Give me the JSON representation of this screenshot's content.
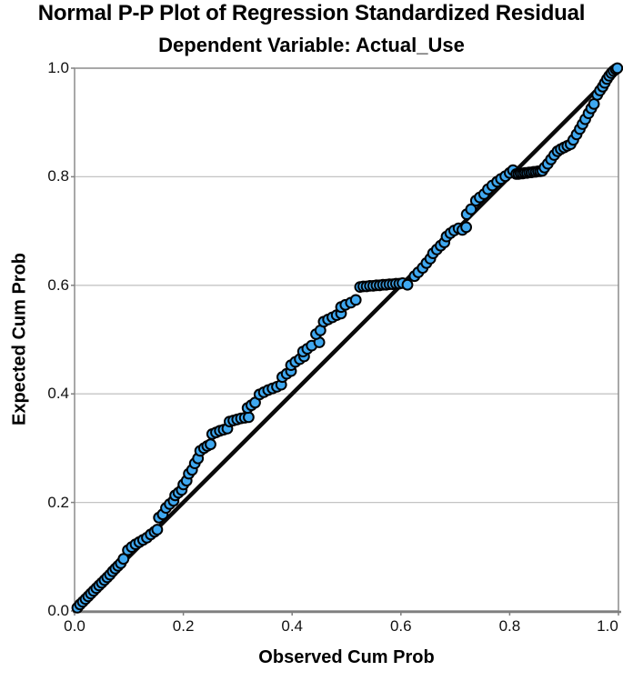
{
  "header": {
    "title": "Normal P-P Plot of Regression Standardized Residual",
    "subtitle": "Dependent Variable: Actual_Use"
  },
  "chart_data": {
    "type": "scatter",
    "title": "Normal P-P Plot of Regression Standardized Residual",
    "subtitle": "Dependent Variable: Actual_Use",
    "xlabel": "Observed Cum Prob",
    "ylabel": "Expected Cum Prob",
    "xlim": [
      0.0,
      1.0
    ],
    "ylim": [
      0.0,
      1.0
    ],
    "xticks": [
      0.0,
      0.2,
      0.4,
      0.6,
      0.8,
      1.0
    ],
    "yticks": [
      0.0,
      0.2,
      0.4,
      0.6,
      0.8,
      1.0
    ],
    "xtick_labels": [
      "0.0",
      "0.2",
      "0.4",
      "0.6",
      "0.8",
      "1.0"
    ],
    "ytick_labels": [
      "0.0",
      "0.2",
      "0.4",
      "0.6",
      "0.8",
      "1.0"
    ],
    "grid": "horizontal-only",
    "legend": "none",
    "reference_line": {
      "from": [
        0.0,
        0.0
      ],
      "to": [
        1.0,
        1.0
      ]
    },
    "colors": {
      "point_fill": "#3FA8F0",
      "point_stroke": "#000000",
      "reference_line": "#0a0a0a",
      "gridline": "#c4c4c4",
      "frame": "#8c8c8c",
      "axis": "#7f7f7f",
      "background": "#ffffff"
    },
    "points": [
      [
        0.005,
        0.006
      ],
      [
        0.01,
        0.012
      ],
      [
        0.015,
        0.017
      ],
      [
        0.02,
        0.022
      ],
      [
        0.025,
        0.027
      ],
      [
        0.03,
        0.032
      ],
      [
        0.035,
        0.037
      ],
      [
        0.04,
        0.042
      ],
      [
        0.045,
        0.047
      ],
      [
        0.05,
        0.052
      ],
      [
        0.055,
        0.057
      ],
      [
        0.06,
        0.062
      ],
      [
        0.065,
        0.067
      ],
      [
        0.07,
        0.073
      ],
      [
        0.075,
        0.078
      ],
      [
        0.08,
        0.083
      ],
      [
        0.085,
        0.088
      ],
      [
        0.09,
        0.096
      ],
      [
        0.098,
        0.112
      ],
      [
        0.105,
        0.118
      ],
      [
        0.112,
        0.123
      ],
      [
        0.119,
        0.127
      ],
      [
        0.126,
        0.131
      ],
      [
        0.133,
        0.135
      ],
      [
        0.14,
        0.141
      ],
      [
        0.147,
        0.146
      ],
      [
        0.152,
        0.15
      ],
      [
        0.155,
        0.172
      ],
      [
        0.162,
        0.178
      ],
      [
        0.168,
        0.19
      ],
      [
        0.175,
        0.197
      ],
      [
        0.182,
        0.203
      ],
      [
        0.185,
        0.213
      ],
      [
        0.191,
        0.218
      ],
      [
        0.197,
        0.223
      ],
      [
        0.2,
        0.233
      ],
      [
        0.206,
        0.24
      ],
      [
        0.21,
        0.253
      ],
      [
        0.216,
        0.26
      ],
      [
        0.221,
        0.272
      ],
      [
        0.227,
        0.281
      ],
      [
        0.231,
        0.295
      ],
      [
        0.238,
        0.3
      ],
      [
        0.244,
        0.304
      ],
      [
        0.25,
        0.307
      ],
      [
        0.253,
        0.326
      ],
      [
        0.26,
        0.329
      ],
      [
        0.267,
        0.332
      ],
      [
        0.274,
        0.334
      ],
      [
        0.281,
        0.336
      ],
      [
        0.285,
        0.349
      ],
      [
        0.292,
        0.351
      ],
      [
        0.299,
        0.353
      ],
      [
        0.306,
        0.355
      ],
      [
        0.313,
        0.356
      ],
      [
        0.32,
        0.357
      ],
      [
        0.318,
        0.374
      ],
      [
        0.325,
        0.379
      ],
      [
        0.332,
        0.384
      ],
      [
        0.34,
        0.399
      ],
      [
        0.348,
        0.403
      ],
      [
        0.356,
        0.407
      ],
      [
        0.364,
        0.41
      ],
      [
        0.372,
        0.413
      ],
      [
        0.38,
        0.417
      ],
      [
        0.382,
        0.431
      ],
      [
        0.39,
        0.437
      ],
      [
        0.398,
        0.442
      ],
      [
        0.398,
        0.453
      ],
      [
        0.406,
        0.459
      ],
      [
        0.414,
        0.464
      ],
      [
        0.422,
        0.469
      ],
      [
        0.42,
        0.478
      ],
      [
        0.428,
        0.483
      ],
      [
        0.436,
        0.489
      ],
      [
        0.45,
        0.495
      ],
      [
        0.444,
        0.51
      ],
      [
        0.452,
        0.517
      ],
      [
        0.458,
        0.533
      ],
      [
        0.466,
        0.537
      ],
      [
        0.474,
        0.541
      ],
      [
        0.482,
        0.545
      ],
      [
        0.49,
        0.548
      ],
      [
        0.49,
        0.56
      ],
      [
        0.498,
        0.564
      ],
      [
        0.508,
        0.568
      ],
      [
        0.517,
        0.573
      ],
      [
        0.525,
        0.597
      ],
      [
        0.531,
        0.598
      ],
      [
        0.537,
        0.598
      ],
      [
        0.543,
        0.599
      ],
      [
        0.549,
        0.599
      ],
      [
        0.555,
        0.6
      ],
      [
        0.561,
        0.6
      ],
      [
        0.567,
        0.601
      ],
      [
        0.573,
        0.601
      ],
      [
        0.579,
        0.602
      ],
      [
        0.585,
        0.602
      ],
      [
        0.591,
        0.603
      ],
      [
        0.597,
        0.603
      ],
      [
        0.603,
        0.604
      ],
      [
        0.612,
        0.601
      ],
      [
        0.625,
        0.617
      ],
      [
        0.632,
        0.624
      ],
      [
        0.64,
        0.632
      ],
      [
        0.647,
        0.641
      ],
      [
        0.654,
        0.649
      ],
      [
        0.659,
        0.659
      ],
      [
        0.666,
        0.666
      ],
      [
        0.673,
        0.673
      ],
      [
        0.68,
        0.679
      ],
      [
        0.684,
        0.69
      ],
      [
        0.691,
        0.696
      ],
      [
        0.698,
        0.701
      ],
      [
        0.706,
        0.705
      ],
      [
        0.713,
        0.702
      ],
      [
        0.72,
        0.707
      ],
      [
        0.721,
        0.731
      ],
      [
        0.729,
        0.74
      ],
      [
        0.738,
        0.756
      ],
      [
        0.745,
        0.762
      ],
      [
        0.753,
        0.768
      ],
      [
        0.76,
        0.777
      ],
      [
        0.768,
        0.784
      ],
      [
        0.777,
        0.791
      ],
      [
        0.784,
        0.796
      ],
      [
        0.792,
        0.801
      ],
      [
        0.8,
        0.807
      ],
      [
        0.806,
        0.812
      ],
      [
        0.812,
        0.805
      ],
      [
        0.816,
        0.805
      ],
      [
        0.82,
        0.806
      ],
      [
        0.824,
        0.806
      ],
      [
        0.828,
        0.807
      ],
      [
        0.832,
        0.807
      ],
      [
        0.836,
        0.808
      ],
      [
        0.84,
        0.808
      ],
      [
        0.844,
        0.809
      ],
      [
        0.848,
        0.809
      ],
      [
        0.852,
        0.81
      ],
      [
        0.856,
        0.81
      ],
      [
        0.86,
        0.811
      ],
      [
        0.864,
        0.817
      ],
      [
        0.87,
        0.824
      ],
      [
        0.876,
        0.832
      ],
      [
        0.882,
        0.84
      ],
      [
        0.888,
        0.847
      ],
      [
        0.894,
        0.851
      ],
      [
        0.9,
        0.854
      ],
      [
        0.906,
        0.857
      ],
      [
        0.912,
        0.86
      ],
      [
        0.917,
        0.868
      ],
      [
        0.923,
        0.878
      ],
      [
        0.929,
        0.888
      ],
      [
        0.934,
        0.897
      ],
      [
        0.939,
        0.906
      ],
      [
        0.945,
        0.917
      ],
      [
        0.95,
        0.926
      ],
      [
        0.955,
        0.934
      ],
      [
        0.961,
        0.951
      ],
      [
        0.966,
        0.959
      ],
      [
        0.971,
        0.966
      ],
      [
        0.975,
        0.973
      ],
      [
        0.979,
        0.98
      ],
      [
        0.983,
        0.986
      ],
      [
        0.987,
        0.991
      ],
      [
        0.991,
        0.995
      ],
      [
        0.995,
        0.998
      ],
      [
        0.998,
        1.0
      ]
    ]
  }
}
